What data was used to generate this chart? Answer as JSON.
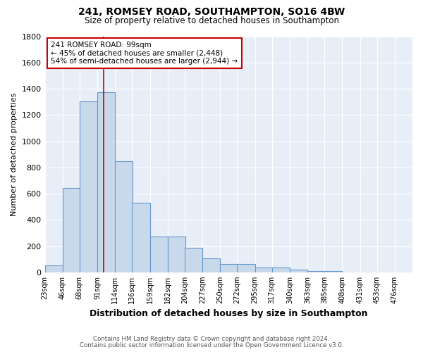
{
  "title1": "241, ROMSEY ROAD, SOUTHAMPTON, SO16 4BW",
  "title2": "Size of property relative to detached houses in Southampton",
  "xlabel": "Distribution of detached houses by size in Southampton",
  "ylabel": "Number of detached properties",
  "bin_labels": [
    "23sqm",
    "46sqm",
    "68sqm",
    "91sqm",
    "114sqm",
    "136sqm",
    "159sqm",
    "182sqm",
    "204sqm",
    "227sqm",
    "250sqm",
    "272sqm",
    "295sqm",
    "317sqm",
    "340sqm",
    "363sqm",
    "385sqm",
    "408sqm",
    "431sqm",
    "453sqm",
    "476sqm"
  ],
  "bar_heights": [
    55,
    645,
    1305,
    1375,
    845,
    530,
    275,
    275,
    185,
    105,
    65,
    65,
    35,
    35,
    20,
    10,
    10,
    0,
    0,
    0,
    0
  ],
  "bar_color": "#c9d9ec",
  "bar_edge_color": "#6699cc",
  "bg_color": "#e8eef8",
  "plot_bg_color": "#e8eef8",
  "grid_color": "#ffffff",
  "vline_x_index": 3,
  "vline_color": "#cc0000",
  "annotation_text": "241 ROMSEY ROAD: 99sqm\n← 45% of detached houses are smaller (2,448)\n54% of semi-detached houses are larger (2,944) →",
  "annotation_box_color": "#ffffff",
  "annotation_box_edge": "#cc0000",
  "footnote1": "Contains HM Land Registry data © Crown copyright and database right 2024.",
  "footnote2": "Contains public sector information licensed under the Open Government Licence v3.0.",
  "ylim": [
    0,
    1800
  ],
  "bin_width": 23,
  "fig_bg": "#ffffff"
}
